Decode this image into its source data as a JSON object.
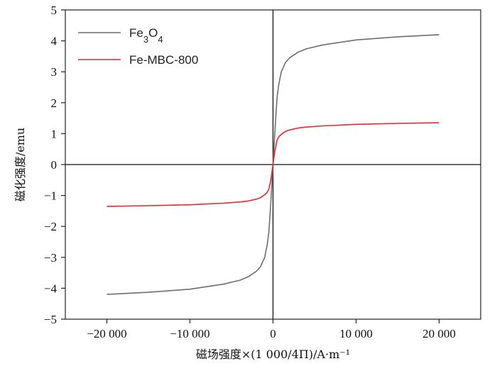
{
  "chart_data": {
    "type": "line",
    "xlabel": "磁场强度×(1 000/4Π)/A·m⁻¹",
    "ylabel": "磁化强度/emu",
    "xlim": [
      -25000,
      25000
    ],
    "ylim": [
      -5,
      5
    ],
    "x_ticks": [
      -20000,
      -10000,
      0,
      10000,
      20000
    ],
    "x_tick_labels": [
      "−20 000",
      "−10 000",
      "0",
      "10 000",
      "20 000"
    ],
    "y_ticks": [
      -5,
      -4,
      -3,
      -2,
      -1,
      0,
      1,
      2,
      3,
      4,
      5
    ],
    "y_tick_labels": [
      "−5",
      "−4",
      "−3",
      "−2",
      "−1",
      "0",
      "1",
      "2",
      "3",
      "4",
      "5"
    ],
    "grid": false,
    "legend_position": "top-left",
    "series": [
      {
        "name": "Fe3O4",
        "color": "#6e6e6e",
        "x": [
          -20000,
          -15000,
          -10000,
          -6000,
          -4000,
          -3000,
          -2000,
          -1500,
          -1000,
          -700,
          -500,
          -300,
          -150,
          0,
          150,
          300,
          500,
          700,
          1000,
          1500,
          2000,
          3000,
          4000,
          6000,
          10000,
          15000,
          20000
        ],
        "y": [
          -4.2,
          -4.13,
          -4.03,
          -3.87,
          -3.74,
          -3.63,
          -3.45,
          -3.3,
          -3.0,
          -2.6,
          -2.2,
          -1.4,
          -0.7,
          0.0,
          0.7,
          1.4,
          2.2,
          2.6,
          3.0,
          3.3,
          3.45,
          3.63,
          3.74,
          3.87,
          4.03,
          4.13,
          4.2
        ]
      },
      {
        "name": "Fe-MBC-800",
        "color": "#e8262b",
        "x": [
          -20000,
          -15000,
          -10000,
          -6000,
          -4000,
          -3000,
          -2000,
          -1500,
          -1000,
          -700,
          -500,
          -300,
          -150,
          0,
          150,
          300,
          500,
          700,
          1000,
          1500,
          2000,
          3000,
          4000,
          6000,
          10000,
          15000,
          20000
        ],
        "y": [
          -1.35,
          -1.33,
          -1.3,
          -1.25,
          -1.21,
          -1.18,
          -1.12,
          -1.07,
          -0.98,
          -0.9,
          -0.8,
          -0.55,
          -0.3,
          0.0,
          0.3,
          0.55,
          0.8,
          0.9,
          0.98,
          1.07,
          1.12,
          1.18,
          1.21,
          1.25,
          1.3,
          1.33,
          1.35
        ]
      }
    ]
  }
}
